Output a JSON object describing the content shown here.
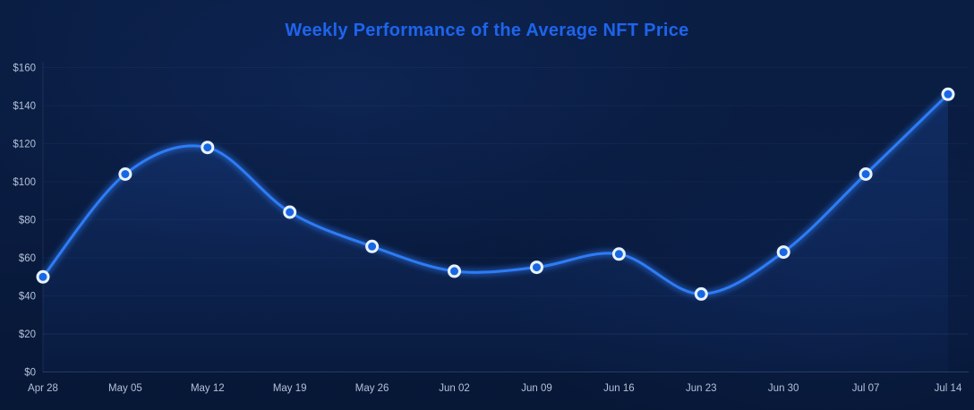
{
  "chart_data": {
    "type": "line",
    "title": "Weekly Performance of the Average NFT Price",
    "x": [
      "Apr 28",
      "May 05",
      "May 12",
      "May 19",
      "May 26",
      "Jun 02",
      "Jun 09",
      "Jun 16",
      "Jun 23",
      "Jun 30",
      "Jul 07",
      "Jul 14"
    ],
    "values": [
      50,
      104,
      118,
      84,
      66,
      53,
      55,
      62,
      41,
      63,
      104,
      146
    ],
    "xlabel": "",
    "ylabel": "",
    "ylim": [
      0,
      160
    ],
    "yticks": [
      0,
      20,
      40,
      60,
      80,
      100,
      120,
      140,
      160
    ],
    "ytick_labels": [
      "$0",
      "$20",
      "$40",
      "$60",
      "$80",
      "$100",
      "$120",
      "$140",
      "$160"
    ],
    "grid": "faint-horizontal",
    "legend": "none",
    "curve": "smooth-spline",
    "marker_style": "circle-with-white-ring",
    "area_fill": true
  },
  "colors": {
    "background_top": "#0a1e44",
    "background_bottom": "#071736",
    "title": "#1e64ec",
    "axis_label": "#b3c0d8",
    "line": "#2e7cf6",
    "marker_fill": "#1767e2",
    "marker_ring": "#e9f2fd",
    "area_top": "rgba(44,106,226,0.20)",
    "area_bottom": "rgba(44,106,226,0.04)",
    "gridline": "#9fb6e8"
  }
}
